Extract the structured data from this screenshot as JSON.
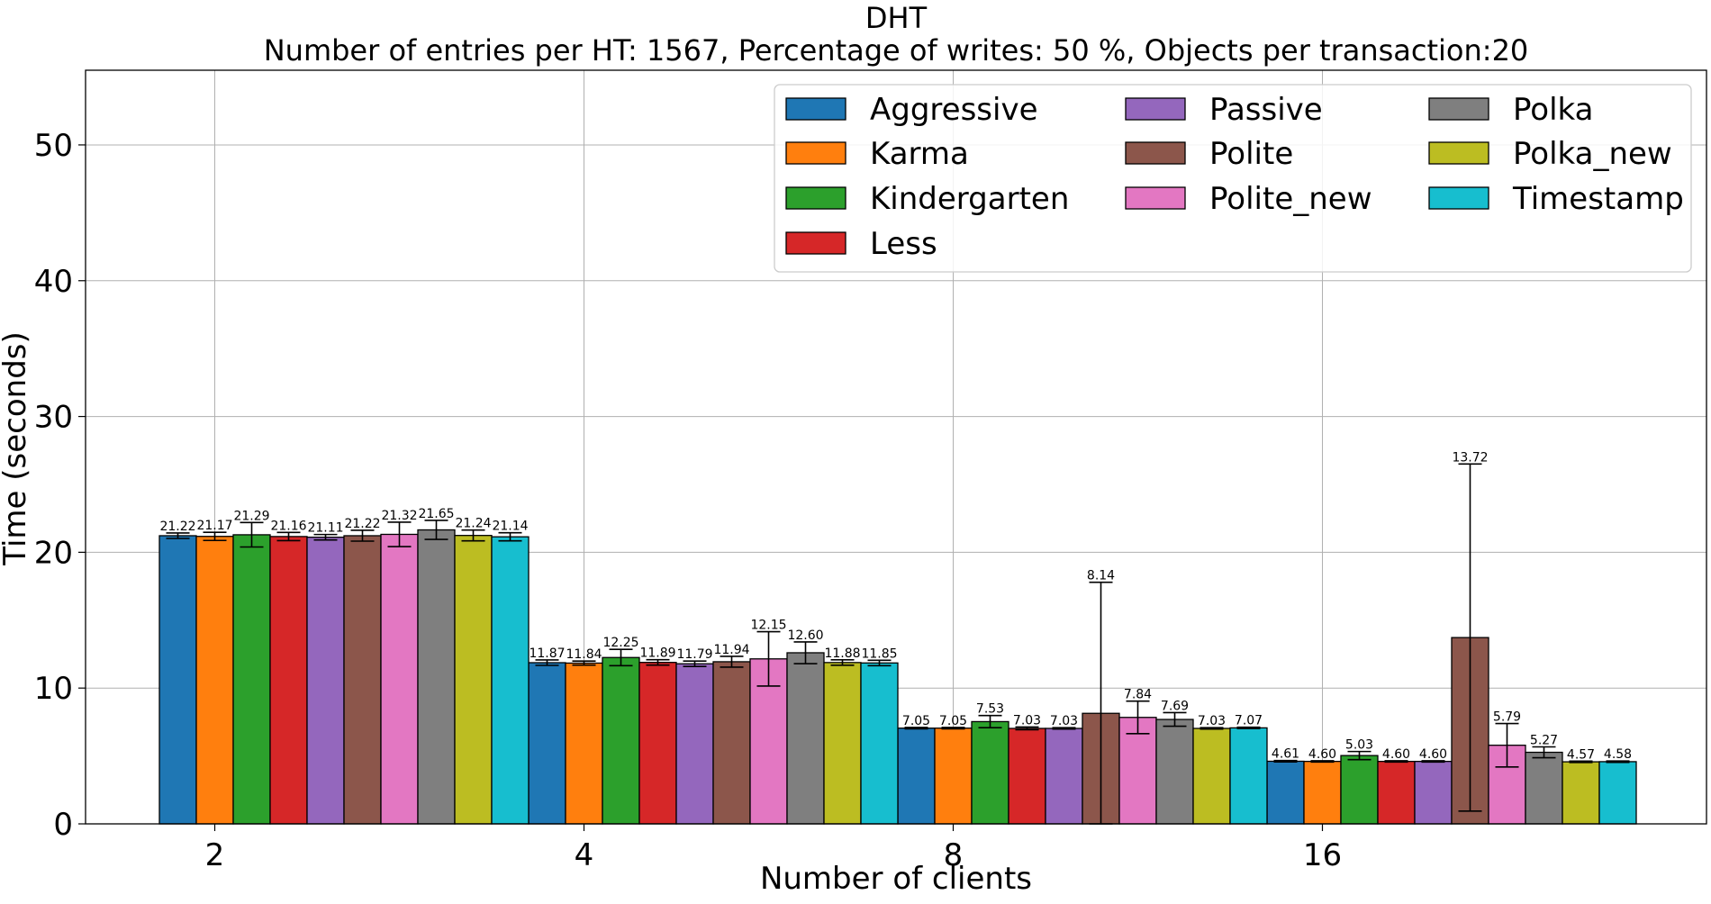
{
  "chart_data": {
    "type": "bar",
    "title": "DHT",
    "subtitle": "Number of entries per HT: 1567, Percentage of writes: 50 %, Objects per transaction:20",
    "xlabel": "Number of clients",
    "ylabel": "Time (seconds)",
    "categories": [
      "2",
      "4",
      "8",
      "16"
    ],
    "ylim": [
      0,
      55.5
    ],
    "yticks": [
      0,
      10,
      20,
      30,
      40,
      50
    ],
    "grid": true,
    "legend_position": "top-right",
    "legend_columns": 3,
    "series": [
      {
        "name": "Aggressive",
        "color": "#1f77b4",
        "values": [
          21.22,
          11.87,
          7.05,
          4.61
        ],
        "values_text": [
          "21.22",
          "11.87",
          "7.05",
          "4.61"
        ],
        "err": [
          0.2,
          0.2,
          0.05,
          0.05
        ]
      },
      {
        "name": "Karma",
        "color": "#ff7f0e",
        "values": [
          21.17,
          11.84,
          7.05,
          4.6
        ],
        "values_text": [
          "21.17",
          "11.84",
          "7.05",
          "4.60"
        ],
        "err": [
          0.3,
          0.15,
          0.05,
          0.05
        ]
      },
      {
        "name": "Kindergarten",
        "color": "#2ca02c",
        "values": [
          21.29,
          12.25,
          7.53,
          5.03
        ],
        "values_text": [
          "21.29",
          "12.25",
          "7.53",
          "5.03"
        ],
        "err": [
          0.9,
          0.6,
          0.45,
          0.3
        ]
      },
      {
        "name": "Less",
        "color": "#d62728",
        "values": [
          21.16,
          11.89,
          7.03,
          4.6
        ],
        "values_text": [
          "21.16",
          "11.89",
          "7.03",
          "4.60"
        ],
        "err": [
          0.3,
          0.2,
          0.1,
          0.05
        ]
      },
      {
        "name": "Passive",
        "color": "#9467bd",
        "values": [
          21.11,
          11.79,
          7.03,
          4.6
        ],
        "values_text": [
          "21.11",
          "11.79",
          "7.03",
          "4.60"
        ],
        "err": [
          0.2,
          0.2,
          0.05,
          0.05
        ]
      },
      {
        "name": "Polite",
        "color": "#8c564b",
        "values": [
          21.22,
          11.94,
          8.14,
          13.72
        ],
        "values_text": [
          "21.22",
          "11.94",
          "8.14",
          "13.72"
        ],
        "err": [
          0.4,
          0.4,
          9.65,
          12.78
        ]
      },
      {
        "name": "Polite_new",
        "color": "#e377c2",
        "values": [
          21.32,
          12.15,
          7.84,
          5.79
        ],
        "values_text": [
          "21.32",
          "12.15",
          "7.84",
          "5.79"
        ],
        "err": [
          0.9,
          2.0,
          1.2,
          1.6
        ]
      },
      {
        "name": "Polka",
        "color": "#7f7f7f",
        "values": [
          21.65,
          12.6,
          7.69,
          5.27
        ],
        "values_text": [
          "21.65",
          "12.60",
          "7.69",
          "5.27"
        ],
        "err": [
          0.7,
          0.8,
          0.5,
          0.4
        ]
      },
      {
        "name": "Polka_new",
        "color": "#bcbd22",
        "values": [
          21.24,
          11.88,
          7.03,
          4.57
        ],
        "values_text": [
          "21.24",
          "11.88",
          "7.03",
          "4.57"
        ],
        "err": [
          0.4,
          0.2,
          0.05,
          0.05
        ]
      },
      {
        "name": "Timestamp",
        "color": "#17becf",
        "values": [
          21.14,
          11.85,
          7.07,
          4.58
        ],
        "values_text": [
          "21.14",
          "11.85",
          "7.07",
          "4.58"
        ],
        "err": [
          0.3,
          0.2,
          0.05,
          0.05
        ]
      }
    ]
  }
}
